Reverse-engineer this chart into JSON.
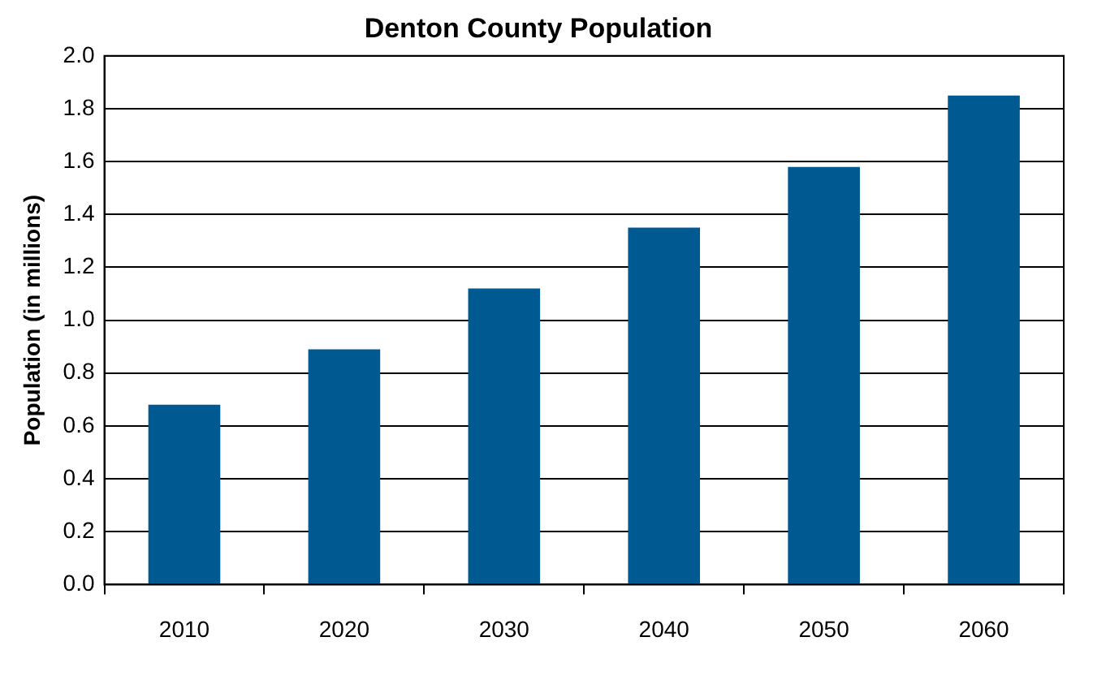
{
  "chart_data": {
    "type": "bar",
    "title": "Denton County Population",
    "ylabel": "Population (in millions)",
    "categories": [
      "2010",
      "2020",
      "2030",
      "2040",
      "2050",
      "2060"
    ],
    "values": [
      0.68,
      0.89,
      1.12,
      1.35,
      1.58,
      1.85
    ],
    "color": "#005a91",
    "ylim": [
      0,
      2
    ],
    "yticks": [
      {
        "value": 0,
        "label": "0.0"
      },
      0.2,
      0.4,
      0.6,
      0.8,
      {
        "value": 1,
        "label": "1.0"
      },
      1.2,
      1.4,
      1.6,
      1.8,
      {
        "value": 2,
        "label": "2.0"
      }
    ],
    "grid": "y",
    "legend": false
  }
}
